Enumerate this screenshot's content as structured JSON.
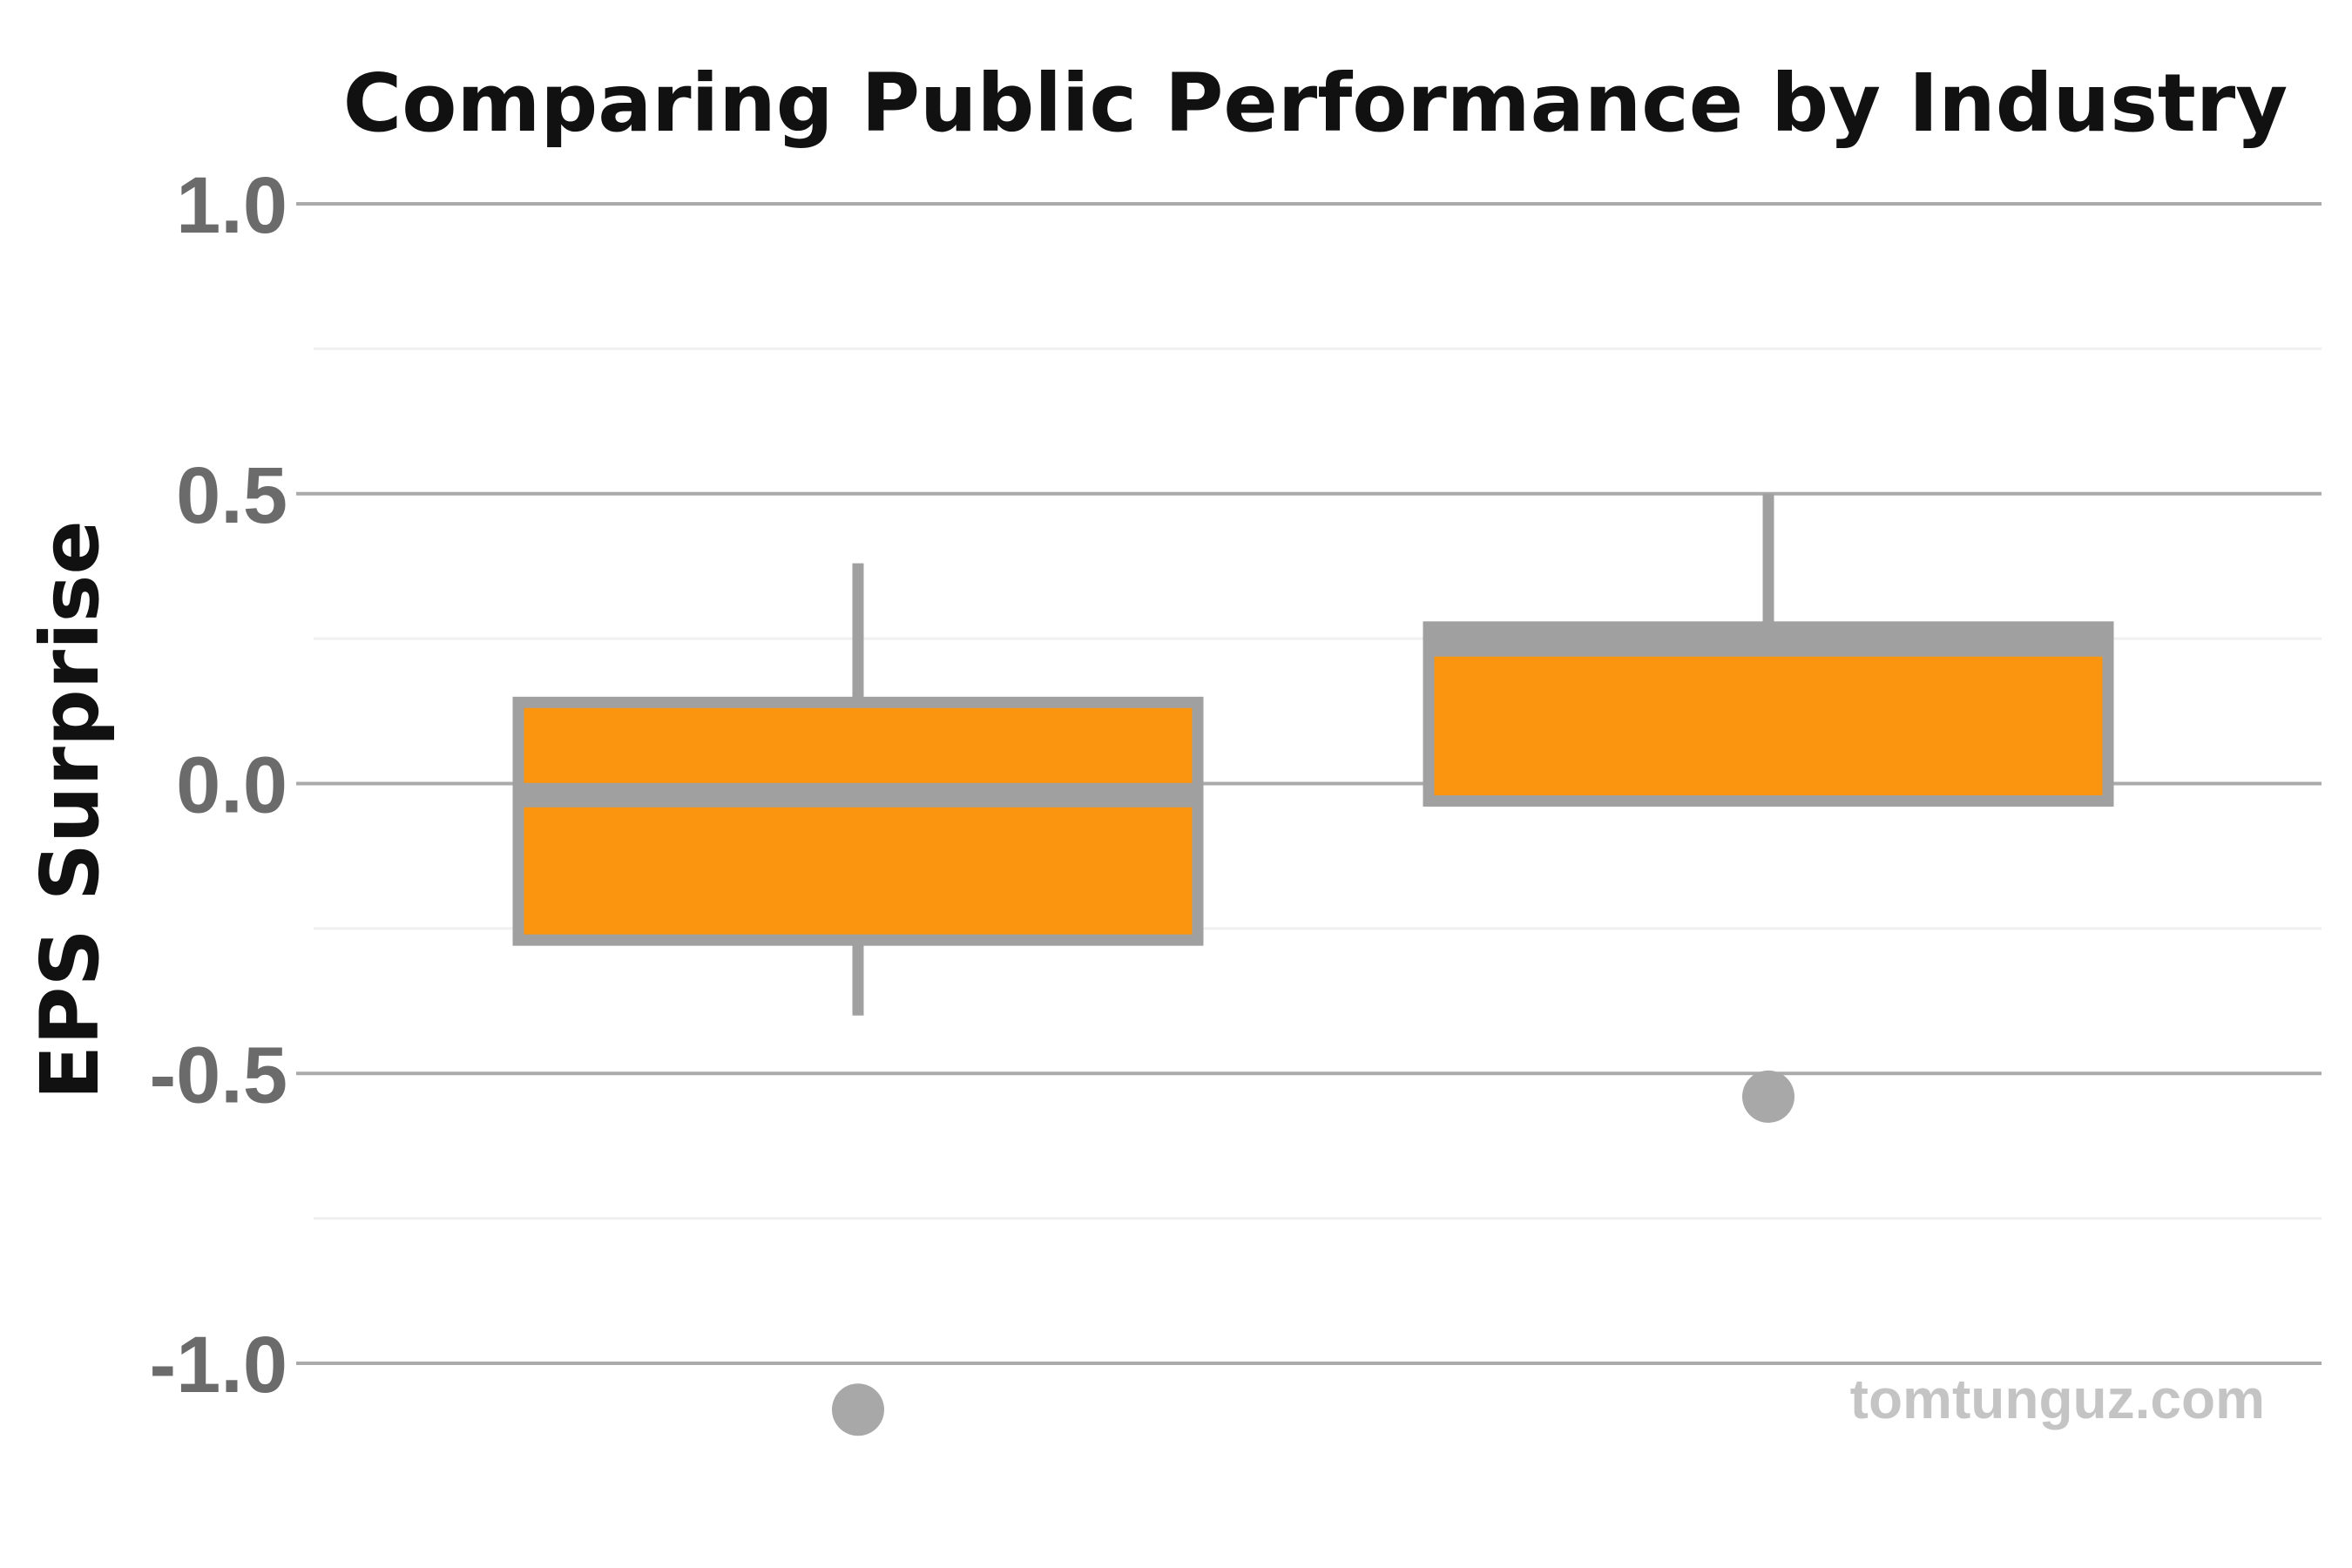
{
  "chart_data": {
    "type": "boxplot",
    "title": "Comparing Public Performance by Industry",
    "xlabel": "",
    "ylabel": "EPS Surprise",
    "ylim": [
      -1.0,
      1.0
    ],
    "yticks": [
      1.0,
      0.5,
      0.0,
      -0.5,
      -1.0
    ],
    "ytick_labels": [
      "1.0",
      "0.5",
      "0.0",
      "-0.5",
      "-1.0"
    ],
    "minor_yticks": [
      0.75,
      0.25,
      -0.25,
      -0.75
    ],
    "grid": true,
    "categories": [
      "",
      ""
    ],
    "boxes": [
      {
        "whisker_low": -0.4,
        "q1": -0.27,
        "median": -0.02,
        "q3": 0.14,
        "whisker_high": 0.38,
        "outliers": [
          -1.08
        ]
      },
      {
        "whisker_low": -0.03,
        "q1": -0.03,
        "median": 0.24,
        "q3": 0.27,
        "whisker_high": 0.5,
        "outliers": [
          -0.54
        ]
      }
    ],
    "colors": {
      "box_fill": "#fb940e",
      "box_edge": "#a0a0a0",
      "outlier": "#a8a8a8",
      "grid_major": "#aaaaaa",
      "grid_minor": "#f0f0f0",
      "tick_text": "#6b6b6b",
      "title_text": "#111111",
      "watermark": "#c4c4c4"
    }
  },
  "watermark": "tomtunguz.com"
}
